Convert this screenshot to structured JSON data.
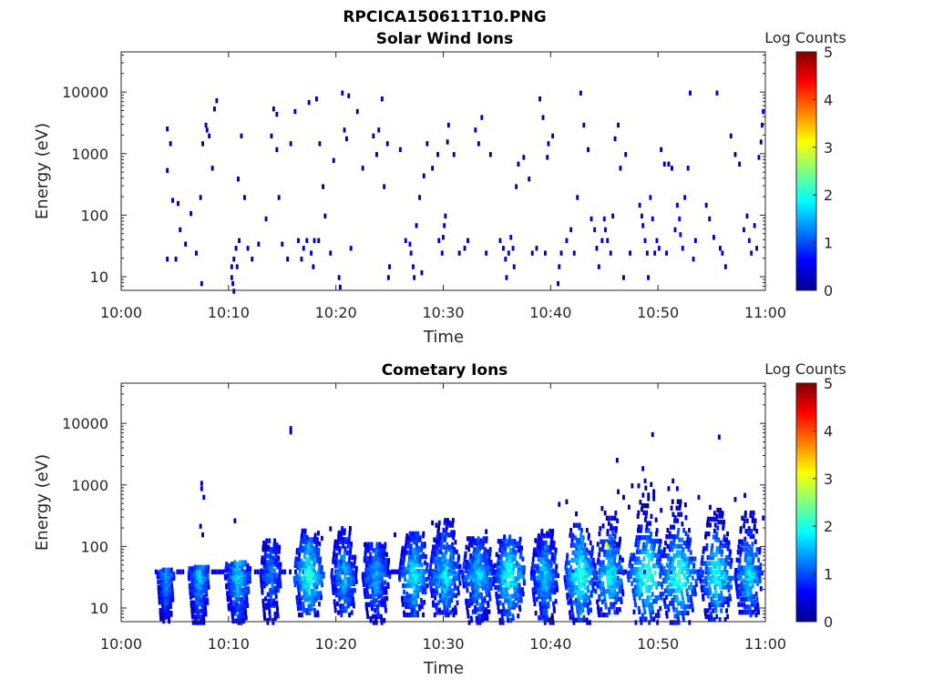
{
  "figure_title": "RPCICA150611T10.PNG",
  "colormap": "jet",
  "chart_data": [
    {
      "type": "heatmap",
      "title": "Solar Wind Ions",
      "xlabel": "Time",
      "ylabel": "Energy (eV)",
      "x_ticks": [
        "10:00",
        "10:10",
        "10:20",
        "10:30",
        "10:40",
        "10:50",
        "11:00"
      ],
      "x_range_minutes": [
        0,
        60
      ],
      "y_scale": "log",
      "y_ticks": [
        10,
        100,
        1000,
        10000
      ],
      "y_tick_labels": [
        "10",
        "100",
        "1000",
        "10000"
      ],
      "ylim": [
        6,
        45000
      ],
      "colorbar": {
        "label": "Log Counts",
        "range": [
          0,
          5
        ],
        "ticks": [
          "0",
          "1",
          "2",
          "3",
          "4",
          "5"
        ]
      },
      "cells": [
        [
          4.3,
          20,
          0.2
        ],
        [
          4.3,
          550,
          0.3
        ],
        [
          4.3,
          2600,
          0.2
        ],
        [
          4.6,
          1500,
          0.2
        ],
        [
          4.8,
          180,
          0.3
        ],
        [
          5.1,
          20,
          0.2
        ],
        [
          5.3,
          160,
          0.2
        ],
        [
          5.5,
          60,
          0.3
        ],
        [
          6.0,
          35,
          0.2
        ],
        [
          6.5,
          110,
          0.3
        ],
        [
          7.0,
          25,
          0.2
        ],
        [
          7.4,
          200,
          0.2
        ],
        [
          7.6,
          1500,
          0.2
        ],
        [
          7.9,
          3000,
          0.3
        ],
        [
          8.2,
          2000,
          0.2
        ],
        [
          8.5,
          600,
          0.2
        ],
        [
          8.7,
          5500,
          0.2
        ],
        [
          8.9,
          7500,
          0.3
        ],
        [
          8.0,
          2500,
          0.2
        ],
        [
          7.5,
          8,
          0.2
        ],
        [
          10.3,
          15,
          0.4
        ],
        [
          10.3,
          10,
          0.5
        ],
        [
          10.4,
          8,
          0.4
        ],
        [
          10.5,
          20,
          0.3
        ],
        [
          10.5,
          6,
          0.3
        ],
        [
          10.7,
          30,
          0.2
        ],
        [
          10.8,
          15,
          0.4
        ],
        [
          11.0,
          40,
          0.3
        ],
        [
          11.2,
          2000,
          0.2
        ],
        [
          11.5,
          200,
          0.3
        ],
        [
          10.9,
          400,
          0.2
        ],
        [
          11.8,
          30,
          0.2
        ],
        [
          12.2,
          20,
          0.2
        ],
        [
          12.8,
          35,
          0.2
        ],
        [
          13.5,
          90,
          0.3
        ],
        [
          14.0,
          2000,
          0.2
        ],
        [
          14.2,
          5500,
          0.2
        ],
        [
          14.5,
          1200,
          0.2
        ],
        [
          14.7,
          200,
          0.2
        ],
        [
          14.5,
          4500,
          0.2
        ],
        [
          15.0,
          35,
          0.2
        ],
        [
          15.5,
          20,
          0.2
        ],
        [
          15.8,
          1500,
          0.2
        ],
        [
          16.2,
          5000,
          0.2
        ],
        [
          16.5,
          40,
          0.3
        ],
        [
          16.8,
          20,
          0.3
        ],
        [
          17.0,
          30,
          0.3
        ],
        [
          17.3,
          40,
          0.2
        ],
        [
          17.5,
          7000,
          0.2
        ],
        [
          17.7,
          25,
          0.4
        ],
        [
          17.9,
          15,
          0.3
        ],
        [
          18.0,
          40,
          0.3
        ],
        [
          18.2,
          8000,
          0.2
        ],
        [
          18.4,
          40,
          0.3
        ],
        [
          18.5,
          1500,
          0.2
        ],
        [
          18.8,
          300,
          0.2
        ],
        [
          19.0,
          100,
          0.2
        ],
        [
          19.5,
          25,
          0.2
        ],
        [
          19.8,
          800,
          0.2
        ],
        [
          20.3,
          10,
          0.3
        ],
        [
          20.4,
          7,
          0.3
        ],
        [
          20.6,
          10000,
          0.2
        ],
        [
          20.8,
          2500,
          0.2
        ],
        [
          21.0,
          1800,
          0.2
        ],
        [
          21.2,
          9000,
          0.2
        ],
        [
          21.4,
          30,
          0.3
        ],
        [
          22.0,
          5000,
          0.2
        ],
        [
          22.5,
          600,
          0.2
        ],
        [
          23.5,
          2000,
          0.2
        ],
        [
          23.8,
          1000,
          0.2
        ],
        [
          24.0,
          2500,
          0.2
        ],
        [
          24.3,
          8000,
          0.2
        ],
        [
          24.5,
          300,
          0.2
        ],
        [
          24.8,
          1500,
          0.2
        ],
        [
          24.9,
          10,
          0.3
        ],
        [
          25.0,
          15,
          0.2
        ],
        [
          26.0,
          1200,
          0.2
        ],
        [
          26.5,
          40,
          0.3
        ],
        [
          26.9,
          35,
          0.5
        ],
        [
          27.0,
          25,
          0.5
        ],
        [
          27.2,
          15,
          0.4
        ],
        [
          27.3,
          10,
          0.3
        ],
        [
          27.5,
          70,
          0.3
        ],
        [
          27.8,
          200,
          0.2
        ],
        [
          28.0,
          12,
          0.2
        ],
        [
          28.2,
          450,
          0.2
        ],
        [
          28.5,
          1500,
          0.2
        ],
        [
          29.0,
          600,
          0.2
        ],
        [
          29.5,
          1000,
          0.2
        ],
        [
          29.6,
          40,
          0.4
        ],
        [
          29.9,
          25,
          0.4
        ],
        [
          30.0,
          45,
          0.5
        ],
        [
          30.1,
          70,
          0.4
        ],
        [
          30.2,
          100,
          0.3
        ],
        [
          30.4,
          1600,
          0.2
        ],
        [
          30.5,
          3000,
          0.2
        ],
        [
          31.0,
          1000,
          0.2
        ],
        [
          31.5,
          25,
          0.2
        ],
        [
          32.0,
          30,
          0.2
        ],
        [
          32.3,
          40,
          0.3
        ],
        [
          33.0,
          2500,
          0.2
        ],
        [
          33.3,
          1500,
          0.2
        ],
        [
          33.6,
          4000,
          0.2
        ],
        [
          34.0,
          25,
          0.3
        ],
        [
          34.4,
          1000,
          0.2
        ],
        [
          35.3,
          40,
          0.4
        ],
        [
          35.6,
          30,
          0.4
        ],
        [
          35.8,
          20,
          0.4
        ],
        [
          35.9,
          10,
          0.3
        ],
        [
          36.1,
          25,
          0.4
        ],
        [
          36.3,
          45,
          0.5
        ],
        [
          36.5,
          30,
          0.4
        ],
        [
          36.6,
          15,
          0.3
        ],
        [
          36.8,
          300,
          0.2
        ],
        [
          37.0,
          700,
          0.2
        ],
        [
          37.5,
          900,
          0.2
        ],
        [
          38.0,
          400,
          0.2
        ],
        [
          38.3,
          25,
          0.3
        ],
        [
          38.7,
          30,
          0.3
        ],
        [
          39.0,
          8000,
          0.2
        ],
        [
          39.3,
          4000,
          0.2
        ],
        [
          39.5,
          25,
          0.3
        ],
        [
          39.7,
          900,
          0.2
        ],
        [
          39.8,
          1500,
          0.2
        ],
        [
          40.2,
          2000,
          0.2
        ],
        [
          40.7,
          8,
          0.3
        ],
        [
          40.8,
          15,
          0.4
        ],
        [
          41.0,
          25,
          0.3
        ],
        [
          41.5,
          40,
          0.4
        ],
        [
          41.9,
          60,
          0.5
        ],
        [
          42.2,
          25,
          0.3
        ],
        [
          42.5,
          200,
          0.2
        ],
        [
          42.8,
          10000,
          0.2
        ],
        [
          43.1,
          3000,
          0.2
        ],
        [
          43.5,
          1200,
          0.2
        ],
        [
          43.8,
          90,
          0.4
        ],
        [
          44.1,
          60,
          0.5
        ],
        [
          44.3,
          30,
          0.4
        ],
        [
          44.5,
          15,
          0.3
        ],
        [
          44.8,
          40,
          0.3
        ],
        [
          45.0,
          90,
          0.6
        ],
        [
          45.1,
          60,
          0.6
        ],
        [
          45.3,
          40,
          0.4
        ],
        [
          45.6,
          25,
          0.5
        ],
        [
          45.8,
          100,
          0.3
        ],
        [
          46.0,
          1800,
          0.2
        ],
        [
          46.3,
          3000,
          0.2
        ],
        [
          46.5,
          600,
          0.2
        ],
        [
          46.8,
          10,
          0.3
        ],
        [
          47.0,
          1000,
          0.2
        ],
        [
          47.4,
          25,
          0.2
        ],
        [
          48.3,
          150,
          0.5
        ],
        [
          48.5,
          100,
          0.6
        ],
        [
          48.6,
          70,
          0.6
        ],
        [
          48.8,
          40,
          0.5
        ],
        [
          49.0,
          25,
          0.4
        ],
        [
          49.1,
          10,
          0.3
        ],
        [
          49.3,
          200,
          0.5
        ],
        [
          49.5,
          90,
          0.5
        ],
        [
          49.7,
          25,
          0.4
        ],
        [
          49.9,
          40,
          0.4
        ],
        [
          50.1,
          30,
          0.5
        ],
        [
          50.3,
          1200,
          0.2
        ],
        [
          50.6,
          700,
          0.3
        ],
        [
          50.8,
          25,
          0.3
        ],
        [
          51.0,
          700,
          0.2
        ],
        [
          51.3,
          600,
          0.2
        ],
        [
          51.6,
          60,
          0.5
        ],
        [
          51.8,
          150,
          0.6
        ],
        [
          52.0,
          90,
          0.7
        ],
        [
          52.1,
          50,
          0.7
        ],
        [
          52.3,
          30,
          0.6
        ],
        [
          52.5,
          200,
          0.4
        ],
        [
          52.8,
          600,
          0.3
        ],
        [
          53.0,
          10000,
          0.2
        ],
        [
          53.3,
          20,
          0.3
        ],
        [
          53.5,
          40,
          0.3
        ],
        [
          54.5,
          150,
          0.3
        ],
        [
          54.8,
          90,
          0.3
        ],
        [
          55.2,
          45,
          0.3
        ],
        [
          55.5,
          10000,
          0.2
        ],
        [
          55.8,
          30,
          0.4
        ],
        [
          56.0,
          25,
          0.4
        ],
        [
          56.3,
          15,
          0.3
        ],
        [
          56.8,
          2000,
          0.2
        ],
        [
          57.2,
          1000,
          0.2
        ],
        [
          57.6,
          700,
          0.2
        ],
        [
          58.0,
          60,
          0.4
        ],
        [
          58.3,
          100,
          0.5
        ],
        [
          58.5,
          40,
          0.6
        ],
        [
          58.7,
          25,
          0.5
        ],
        [
          59.0,
          70,
          0.4
        ],
        [
          59.2,
          30,
          0.4
        ],
        [
          59.4,
          900,
          0.2
        ],
        [
          59.6,
          1600,
          0.2
        ],
        [
          59.7,
          3000,
          0.2
        ],
        [
          59.8,
          5000,
          0.2
        ]
      ]
    },
    {
      "type": "heatmap",
      "title": "Cometary Ions",
      "xlabel": "Time",
      "ylabel": "Energy (eV)",
      "x_ticks": [
        "10:00",
        "10:10",
        "10:20",
        "10:30",
        "10:40",
        "10:50",
        "11:00"
      ],
      "x_range_minutes": [
        0,
        60
      ],
      "y_scale": "log",
      "y_ticks": [
        10,
        100,
        1000,
        10000
      ],
      "y_tick_labels": [
        "10",
        "100",
        "1000",
        "10000"
      ],
      "ylim": [
        6,
        45000
      ],
      "colorbar": {
        "label": "Log Counts",
        "range": [
          0,
          5
        ],
        "ticks": [
          "0",
          "1",
          "2",
          "3",
          "4",
          "5"
        ]
      },
      "bursts": [
        {
          "t": 4.2,
          "w": 0.8,
          "emin": 6,
          "emax": 45,
          "peak": 1.4
        },
        {
          "t": 7.3,
          "w": 1.0,
          "emin": 6,
          "emax": 50,
          "peak": 1.6
        },
        {
          "t": 10.9,
          "w": 1.2,
          "emin": 6,
          "emax": 60,
          "peak": 1.7
        },
        {
          "t": 14.0,
          "w": 1.0,
          "emin": 6,
          "emax": 150,
          "peak": 1.3
        },
        {
          "t": 17.5,
          "w": 1.4,
          "emin": 8,
          "emax": 200,
          "peak": 2.1
        },
        {
          "t": 20.8,
          "w": 1.2,
          "emin": 8,
          "emax": 220,
          "peak": 1.6
        },
        {
          "t": 23.8,
          "w": 1.3,
          "emin": 6,
          "emax": 120,
          "peak": 1.5
        },
        {
          "t": 27.3,
          "w": 1.4,
          "emin": 8,
          "emax": 180,
          "peak": 1.9
        },
        {
          "t": 30.2,
          "w": 1.5,
          "emin": 8,
          "emax": 300,
          "peak": 1.8
        },
        {
          "t": 33.3,
          "w": 1.5,
          "emin": 6,
          "emax": 150,
          "peak": 1.7
        },
        {
          "t": 36.2,
          "w": 1.5,
          "emin": 6,
          "emax": 160,
          "peak": 2.1
        },
        {
          "t": 39.5,
          "w": 1.3,
          "emin": 6,
          "emax": 200,
          "peak": 1.7
        },
        {
          "t": 42.8,
          "w": 1.5,
          "emin": 6,
          "emax": 250,
          "peak": 2.2
        },
        {
          "t": 45.5,
          "w": 1.5,
          "emin": 8,
          "emax": 400,
          "peak": 1.9
        },
        {
          "t": 49.0,
          "w": 1.8,
          "emin": 6,
          "emax": 1200,
          "peak": 2.3
        },
        {
          "t": 52.0,
          "w": 1.8,
          "emin": 6,
          "emax": 700,
          "peak": 2.2
        },
        {
          "t": 55.5,
          "w": 1.6,
          "emin": 6,
          "emax": 500,
          "peak": 2.0
        },
        {
          "t": 58.5,
          "w": 1.3,
          "emin": 8,
          "emax": 400,
          "peak": 1.8
        }
      ],
      "band": {
        "energy": 40,
        "tmin": 3.0,
        "tmax": 59.5,
        "level": 0.4
      },
      "cells": [
        [
          7.5,
          1100,
          0.3
        ],
        [
          7.5,
          900,
          0.3
        ],
        [
          7.7,
          650,
          0.3
        ],
        [
          7.4,
          220,
          0.3
        ],
        [
          7.6,
          160,
          0.3
        ],
        [
          10.6,
          270,
          0.2
        ],
        [
          15.8,
          8500,
          0.2
        ],
        [
          15.8,
          7500,
          0.2
        ],
        [
          13.5,
          110,
          0.3
        ],
        [
          18.7,
          140,
          0.3
        ],
        [
          19.5,
          200,
          0.3
        ],
        [
          22.7,
          110,
          0.3
        ],
        [
          25.5,
          160,
          0.2
        ],
        [
          29.0,
          250,
          0.2
        ],
        [
          34.0,
          180,
          0.2
        ],
        [
          38.5,
          80,
          0.3
        ],
        [
          40.8,
          500,
          0.2
        ],
        [
          41.5,
          550,
          0.2
        ],
        [
          42.4,
          350,
          0.2
        ],
        [
          44.8,
          430,
          0.2
        ],
        [
          46.2,
          2600,
          0.2
        ],
        [
          46.3,
          800,
          0.3
        ],
        [
          46.8,
          650,
          0.3
        ],
        [
          47.3,
          450,
          0.2
        ],
        [
          47.6,
          1000,
          0.2
        ],
        [
          48.2,
          1000,
          0.3
        ],
        [
          48.6,
          1900,
          0.3
        ],
        [
          48.8,
          1200,
          0.3
        ],
        [
          49.5,
          6800,
          0.2
        ],
        [
          50.3,
          400,
          0.3
        ],
        [
          51.0,
          900,
          0.3
        ],
        [
          51.4,
          1200,
          0.3
        ],
        [
          51.8,
          900,
          0.3
        ],
        [
          53.8,
          650,
          0.3
        ],
        [
          55.7,
          6200,
          0.2
        ],
        [
          57.2,
          600,
          0.3
        ],
        [
          58.1,
          700,
          0.3
        ],
        [
          59.8,
          300,
          0.3
        ],
        [
          45.2,
          110,
          3.0
        ],
        [
          45.3,
          100,
          2.9
        ]
      ]
    }
  ]
}
